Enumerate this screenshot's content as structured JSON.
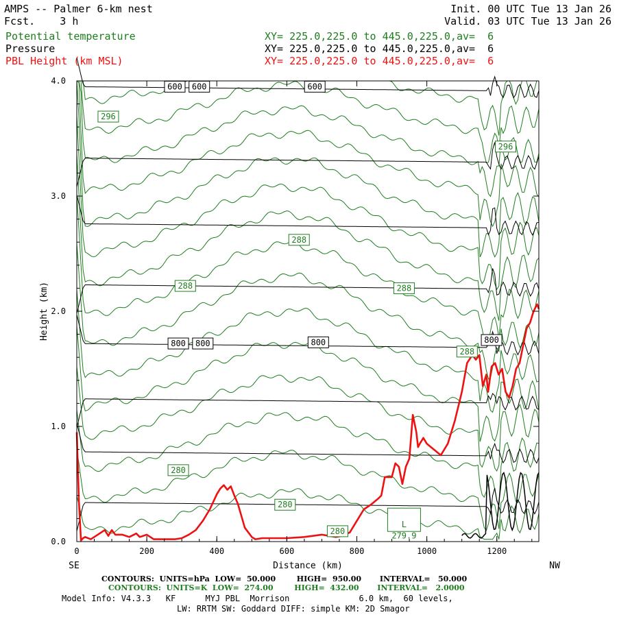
{
  "header": {
    "title": "AMPS -- Palmer 6-km nest",
    "fcst": "Fcst.    3 h",
    "init": "Init. 00 UTC Tue 13 Jan 26",
    "valid": "Valid. 03 UTC Tue 13 Jan 26",
    "fields": [
      {
        "name": "Potential temperature",
        "xy": "XY= 225.0,225.0 to 445.0,225.0,av=  6",
        "color": "#1e7d1e"
      },
      {
        "name": "Pressure",
        "xy": "XY= 225.0,225.0 to 445.0,225.0,av=  6",
        "color": "#000000"
      },
      {
        "name": "PBL Height (km MSL)",
        "xy": "XY= 225.0,225.0 to 445.0,225.0,av=  6",
        "color": "#ee1111"
      }
    ]
  },
  "footer": {
    "pressure_contours": "CONTOURS:  UNITS=hPa  LOW=  50.000        HIGH=  950.00       INTERVAL=   50.000",
    "theta_contours": "CONTOURS:  UNITS=K  LOW=  274.00        HIGH=  432.00       INTERVAL=   2.0000",
    "model_info_1": "Model Info: V4.3.3   KF      MYJ PBL  Morrison              6.0 km,  60 levels,",
    "model_info_2": "LW: RRTM SW: Goddard DIFF: simple KM: 2D Smagor"
  },
  "chart_data": {
    "type": "line",
    "xlabel": "Distance (km)",
    "ylabel": "Height (km)",
    "xlim": [
      0,
      1320
    ],
    "ylim": [
      0.0,
      4.0
    ],
    "x_ticks": [
      "0",
      "200",
      "400",
      "600",
      "800",
      "1000",
      "1200"
    ],
    "y_ticks": [
      "0.0",
      "1.0",
      "2.0",
      "3.0",
      "4.0"
    ],
    "x_end_labels": {
      "left": "SE",
      "right": "NW"
    },
    "colors": {
      "theta": "#1e7d1e",
      "pressure": "#000000",
      "pbl": "#ee1111"
    },
    "pbl_height": {
      "name": "PBL Height (km MSL)",
      "x": [
        0,
        6,
        12,
        18,
        24,
        40,
        60,
        80,
        90,
        100,
        110,
        130,
        150,
        170,
        180,
        200,
        220,
        240,
        260,
        280,
        300,
        320,
        340,
        360,
        380,
        400,
        410,
        420,
        430,
        440,
        450,
        460,
        480,
        500,
        510,
        530,
        560,
        600,
        650,
        700,
        740,
        760,
        780,
        800,
        820,
        840,
        860,
        870,
        880,
        900,
        910,
        920,
        930,
        940,
        950,
        960,
        970,
        975,
        980,
        990,
        1000,
        1020,
        1040,
        1060,
        1080,
        1100,
        1115,
        1130,
        1140,
        1150,
        1160,
        1170,
        1175,
        1185,
        1195,
        1205,
        1215,
        1225,
        1235,
        1245,
        1255,
        1265,
        1275,
        1285,
        1295,
        1305,
        1315,
        1320
      ],
      "y": [
        0.95,
        0.35,
        0.01,
        0.03,
        0.04,
        0.02,
        0.06,
        0.1,
        0.05,
        0.1,
        0.06,
        0.06,
        0.04,
        0.07,
        0.04,
        0.06,
        0.02,
        0.02,
        0.02,
        0.02,
        0.03,
        0.06,
        0.1,
        0.18,
        0.28,
        0.41,
        0.46,
        0.49,
        0.45,
        0.48,
        0.4,
        0.33,
        0.12,
        0.04,
        0.02,
        0.03,
        0.03,
        0.03,
        0.04,
        0.06,
        0.04,
        0.05,
        0.08,
        0.18,
        0.28,
        0.32,
        0.37,
        0.4,
        0.56,
        0.56,
        0.68,
        0.65,
        0.5,
        0.65,
        0.72,
        1.1,
        0.95,
        0.82,
        0.85,
        0.9,
        0.85,
        0.8,
        0.75,
        0.85,
        1.05,
        1.3,
        1.55,
        1.62,
        1.58,
        1.62,
        1.35,
        1.45,
        1.3,
        1.52,
        1.55,
        1.45,
        1.5,
        1.3,
        1.25,
        1.35,
        1.5,
        1.55,
        1.7,
        1.85,
        1.9,
        2.0,
        2.06,
        2.02
      ]
    },
    "pressure_levels": [
      {
        "label": "600",
        "y": 3.95
      },
      {
        "label": "",
        "y": 3.33
      },
      {
        "label": "",
        "y": 2.76
      },
      {
        "label": "",
        "y": 2.23
      },
      {
        "label": "800",
        "y": 1.72
      },
      {
        "label": "",
        "y": 1.24
      },
      {
        "label": "",
        "y": 0.78
      },
      {
        "label": "",
        "y": 0.34
      }
    ],
    "pressure_labels": [
      {
        "text": "600",
        "x": 280,
        "y": 3.95
      },
      {
        "text": "600",
        "x": 350,
        "y": 3.95
      },
      {
        "text": "600",
        "x": 680,
        "y": 3.95
      },
      {
        "text": "800",
        "x": 290,
        "y": 1.72
      },
      {
        "text": "800",
        "x": 360,
        "y": 1.72
      },
      {
        "text": "800",
        "x": 690,
        "y": 1.73
      },
      {
        "text": "800",
        "x": 1185,
        "y": 1.75
      }
    ],
    "theta_labels": [
      {
        "text": "296",
        "x": 90,
        "y": 3.69
      },
      {
        "text": "296",
        "x": 1225,
        "y": 3.43
      },
      {
        "text": "288",
        "x": 635,
        "y": 2.62
      },
      {
        "text": "288",
        "x": 310,
        "y": 2.22
      },
      {
        "text": "288",
        "x": 935,
        "y": 2.2
      },
      {
        "text": "288",
        "x": 1115,
        "y": 1.65
      },
      {
        "text": "280",
        "x": 290,
        "y": 0.62
      },
      {
        "text": "280",
        "x": 595,
        "y": 0.32
      },
      {
        "text": "280",
        "x": 745,
        "y": 0.09
      }
    ],
    "annotations": [
      {
        "text": "L",
        "x": 935,
        "y": 0.15
      },
      {
        "text": "279.9",
        "x": 935,
        "y": 0.05
      }
    ]
  }
}
